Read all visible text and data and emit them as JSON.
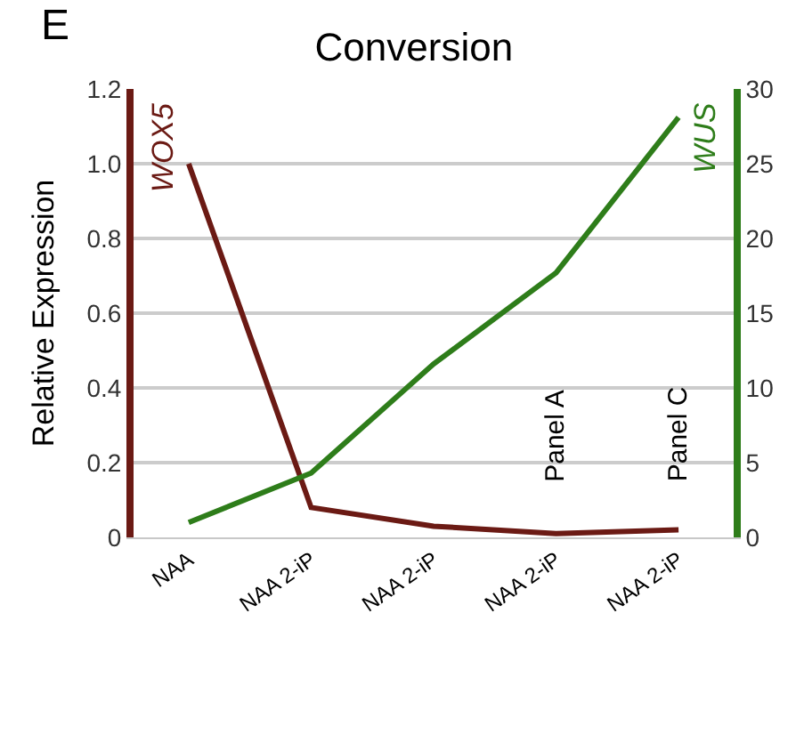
{
  "chart_data": {
    "type": "line",
    "title": "Conversion",
    "ylabel": "Relative Expression",
    "categories": [
      "NAA",
      "NAA 2-iP",
      "NAA 2-iP",
      "NAA 2-iP",
      "NAA 2-iP"
    ],
    "series": [
      {
        "name": "WOX5",
        "color": "#6b1a14",
        "values": [
          1.0,
          0.08,
          0.03,
          0.01,
          0.02
        ]
      },
      {
        "name": "WUS",
        "color": "#2e7d1a",
        "axis": "y2",
        "values": [
          1,
          4.3,
          11.6,
          17.7,
          28.1
        ]
      }
    ],
    "ylim": [
      0,
      1.2
    ],
    "yticks": [
      0,
      0.2,
      0.4,
      0.6,
      0.8,
      {
        "value": 1,
        "label": "1.0"
      },
      1.2
    ],
    "y2lim": [
      0,
      30
    ],
    "y2ticks": [
      0,
      5,
      10,
      15,
      20,
      25,
      30
    ],
    "grid": "y",
    "legend": false,
    "marker": "none",
    "line_style": "solid",
    "annotations": [
      "E",
      "Panel A",
      "Panel C"
    ]
  }
}
